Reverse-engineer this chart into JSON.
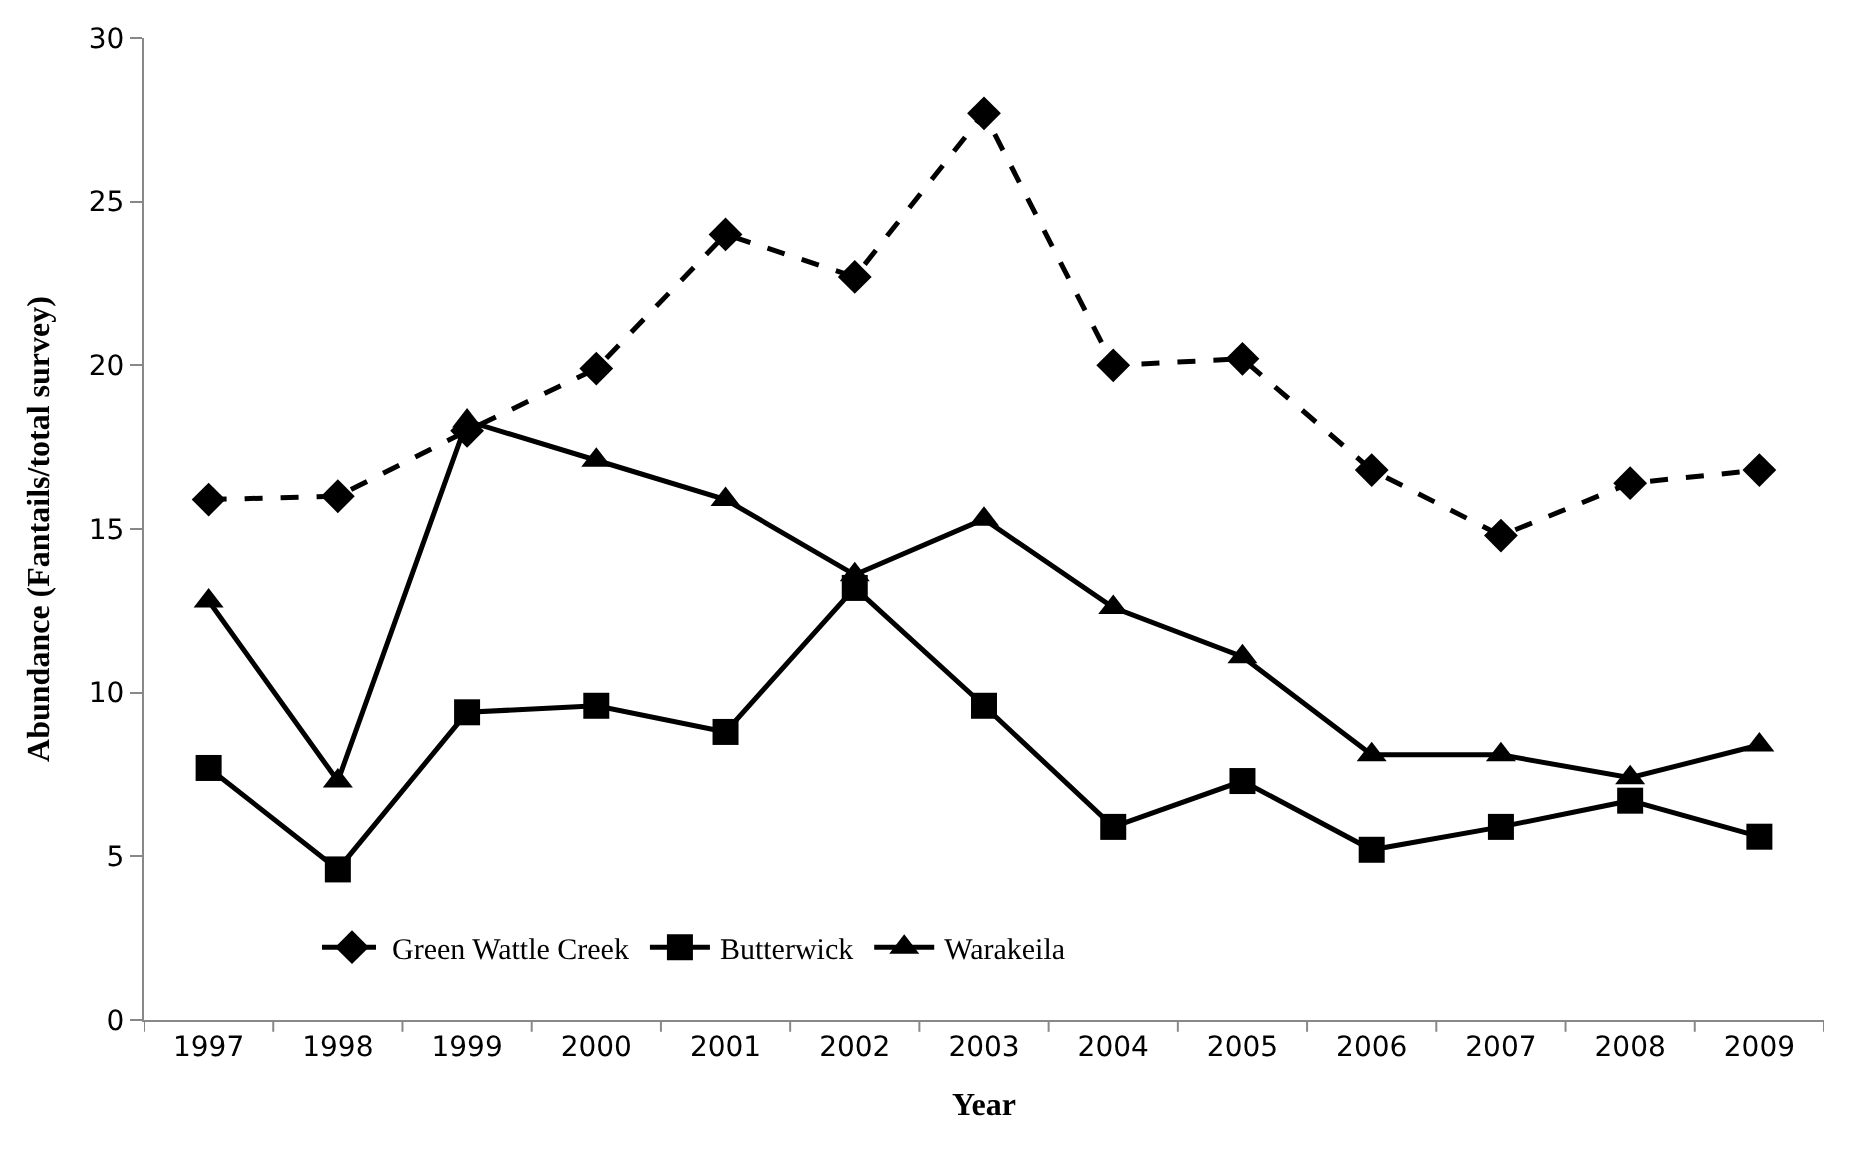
{
  "chart_data": {
    "type": "line",
    "xlabel": "Year",
    "ylabel": "Abundance (Fantails/total survey)",
    "categories": [
      "1997",
      "1998",
      "1999",
      "2000",
      "2001",
      "2002",
      "2003",
      "2004",
      "2005",
      "2006",
      "2007",
      "2008",
      "2009"
    ],
    "ylim": [
      0,
      30
    ],
    "yticks": [
      0,
      5,
      10,
      15,
      20,
      25,
      30
    ],
    "legend": "bottom left",
    "series": [
      {
        "name": "Green Wattle Creek",
        "color": "#000000",
        "marker": "diamond",
        "line_style": "dashed",
        "values": [
          15.9,
          16.0,
          18.0,
          19.9,
          24.0,
          22.7,
          27.7,
          20.0,
          20.2,
          16.8,
          14.8,
          16.4,
          16.8
        ]
      },
      {
        "name": "Butterwick",
        "color": "#000000",
        "marker": "square",
        "line_style": "solid",
        "values": [
          7.7,
          4.6,
          9.4,
          9.6,
          8.8,
          13.2,
          9.6,
          5.9,
          7.3,
          5.2,
          5.9,
          6.7,
          5.6
        ]
      },
      {
        "name": "Warakeila",
        "color": "#000000",
        "marker": "triangle",
        "line_style": "solid",
        "values": [
          12.8,
          7.3,
          18.3,
          17.1,
          15.9,
          13.6,
          15.3,
          12.6,
          11.1,
          8.1,
          8.1,
          7.4,
          8.4
        ]
      }
    ]
  }
}
